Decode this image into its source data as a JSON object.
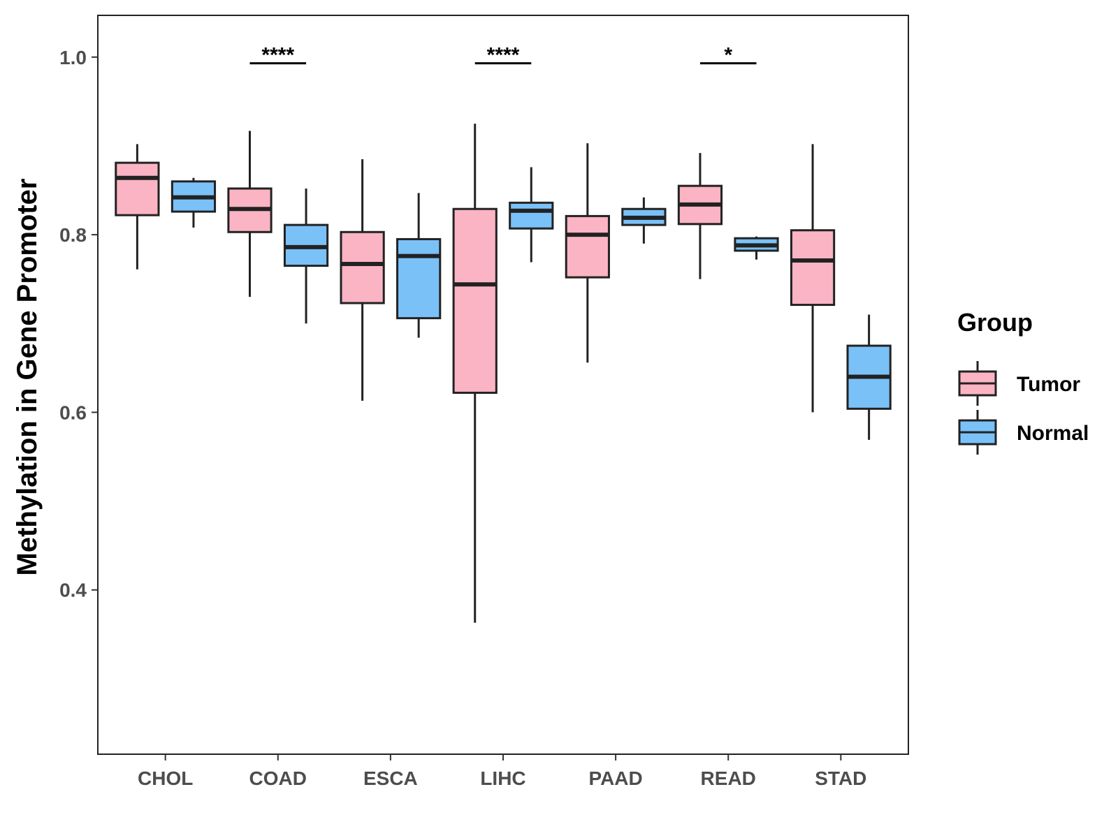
{
  "chart_data": {
    "type": "boxplot",
    "ylabel": "Methylation in Gene Promoter",
    "xlabel": "",
    "ylim": [
      0.215,
      1.047
    ],
    "yticks": [
      0.4,
      0.6,
      0.8,
      1.0
    ],
    "ytick_labels": [
      "0.4",
      "0.6",
      "0.8",
      "1.0"
    ],
    "categories": [
      "CHOL",
      "COAD",
      "ESCA",
      "LIHC",
      "PAAD",
      "READ",
      "STAD"
    ],
    "legend": {
      "title": "Group",
      "position": "right",
      "entries": [
        {
          "name": "Tumor",
          "color": "#FBB4C4"
        },
        {
          "name": "Normal",
          "color": "#7AC1F8"
        }
      ]
    },
    "series": [
      {
        "name": "Tumor",
        "color": "#FBB4C4",
        "boxes": [
          {
            "category": "CHOL",
            "whisker_low": 0.761,
            "q1": 0.822,
            "median": 0.864,
            "q3": 0.881,
            "whisker_high": 0.902
          },
          {
            "category": "COAD",
            "whisker_low": 0.73,
            "q1": 0.803,
            "median": 0.829,
            "q3": 0.852,
            "whisker_high": 0.917
          },
          {
            "category": "ESCA",
            "whisker_low": 0.613,
            "q1": 0.723,
            "median": 0.767,
            "q3": 0.803,
            "whisker_high": 0.885
          },
          {
            "category": "LIHC",
            "whisker_low": 0.363,
            "q1": 0.622,
            "median": 0.744,
            "q3": 0.829,
            "whisker_high": 0.925
          },
          {
            "category": "PAAD",
            "whisker_low": 0.656,
            "q1": 0.752,
            "median": 0.8,
            "q3": 0.821,
            "whisker_high": 0.903
          },
          {
            "category": "READ",
            "whisker_low": 0.75,
            "q1": 0.812,
            "median": 0.834,
            "q3": 0.855,
            "whisker_high": 0.892
          },
          {
            "category": "STAD",
            "whisker_low": 0.6,
            "q1": 0.721,
            "median": 0.771,
            "q3": 0.805,
            "whisker_high": 0.902
          }
        ]
      },
      {
        "name": "Normal",
        "color": "#7AC1F8",
        "boxes": [
          {
            "category": "CHOL",
            "whisker_low": 0.808,
            "q1": 0.826,
            "median": 0.842,
            "q3": 0.86,
            "whisker_high": 0.864
          },
          {
            "category": "COAD",
            "whisker_low": 0.7,
            "q1": 0.765,
            "median": 0.786,
            "q3": 0.811,
            "whisker_high": 0.852
          },
          {
            "category": "ESCA",
            "whisker_low": 0.684,
            "q1": 0.706,
            "median": 0.776,
            "q3": 0.795,
            "whisker_high": 0.847
          },
          {
            "category": "LIHC",
            "whisker_low": 0.769,
            "q1": 0.807,
            "median": 0.827,
            "q3": 0.836,
            "whisker_high": 0.876
          },
          {
            "category": "PAAD",
            "whisker_low": 0.79,
            "q1": 0.811,
            "median": 0.819,
            "q3": 0.829,
            "whisker_high": 0.842
          },
          {
            "category": "READ",
            "whisker_low": 0.772,
            "q1": 0.782,
            "median": 0.788,
            "q3": 0.796,
            "whisker_high": 0.798
          },
          {
            "category": "STAD",
            "whisker_low": 0.569,
            "q1": 0.604,
            "median": 0.64,
            "q3": 0.675,
            "whisker_high": 0.71
          }
        ]
      }
    ],
    "significance": [
      {
        "category": "COAD",
        "label": "****",
        "y": 0.993
      },
      {
        "category": "LIHC",
        "label": "****",
        "y": 0.993
      },
      {
        "category": "READ",
        "label": "*",
        "y": 0.993
      }
    ]
  }
}
